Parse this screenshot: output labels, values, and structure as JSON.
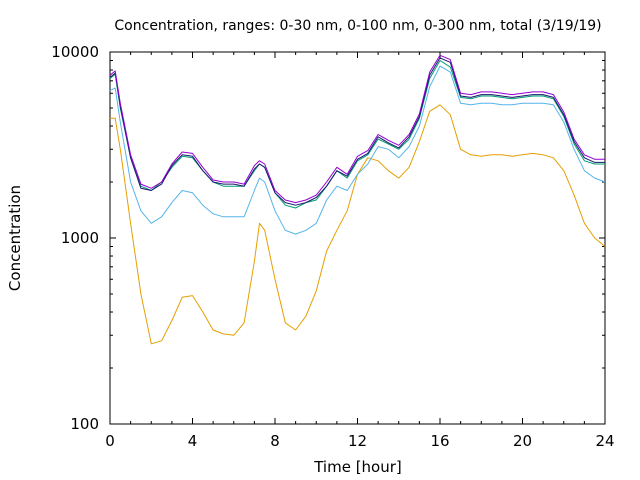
{
  "chart_data": {
    "type": "line",
    "title": "Concentration, ranges: 0-30 nm, 0-100 nm, 0-300 nm, total (3/19/19)",
    "xlabel": "Time [hour]",
    "ylabel": "Concentration",
    "xlim": [
      0,
      24
    ],
    "ylim": [
      100,
      10000
    ],
    "yscale": "log",
    "xticks": [
      "0",
      "4",
      "8",
      "12",
      "16",
      "20",
      "24"
    ],
    "yticks": [
      "100",
      "1000",
      "10000"
    ],
    "grid": false,
    "legend": "none",
    "x": [
      0,
      0.25,
      0.5,
      1,
      1.5,
      2,
      2.5,
      3,
      3.5,
      4,
      4.5,
      5,
      5.5,
      6,
      6.5,
      7,
      7.25,
      7.5,
      8,
      8.5,
      9,
      9.5,
      10,
      10.5,
      11,
      11.5,
      12,
      12.5,
      13,
      13.5,
      14,
      14.5,
      15,
      15.5,
      16,
      16.5,
      17,
      17.5,
      18,
      18.5,
      19,
      19.5,
      20,
      20.5,
      21,
      21.5,
      22,
      22.5,
      23,
      23.5,
      24
    ],
    "series": [
      {
        "color": "#e59f00",
        "values": [
          4400,
          4400,
          3000,
          1200,
          500,
          270,
          280,
          360,
          480,
          490,
          400,
          320,
          305,
          300,
          350,
          750,
          1200,
          1100,
          600,
          350,
          320,
          380,
          520,
          850,
          1100,
          1400,
          2200,
          2700,
          2600,
          2300,
          2100,
          2400,
          3300,
          4800,
          5200,
          4600,
          3000,
          2800,
          2750,
          2800,
          2800,
          2750,
          2800,
          2850,
          2800,
          2700,
          2300,
          1700,
          1200,
          1000,
          900
        ]
      },
      {
        "color": "#56b4e9",
        "values": [
          6200,
          6400,
          4200,
          2000,
          1400,
          1200,
          1300,
          1550,
          1800,
          1750,
          1500,
          1350,
          1300,
          1300,
          1300,
          1800,
          2100,
          2000,
          1400,
          1100,
          1050,
          1100,
          1200,
          1600,
          1900,
          1800,
          2200,
          2500,
          3100,
          3000,
          2700,
          3100,
          4000,
          6500,
          8400,
          7800,
          5300,
          5200,
          5300,
          5300,
          5200,
          5200,
          5300,
          5300,
          5300,
          5200,
          4200,
          3000,
          2300,
          2100,
          2000
        ]
      },
      {
        "color": "#009e73",
        "values": [
          7200,
          7600,
          5000,
          2700,
          1900,
          1800,
          2000,
          2400,
          2750,
          2700,
          2300,
          2000,
          1900,
          1900,
          1900,
          2300,
          2500,
          2400,
          1750,
          1500,
          1450,
          1550,
          1600,
          1900,
          2300,
          2100,
          2600,
          2800,
          3400,
          3200,
          3000,
          3400,
          4400,
          7200,
          9000,
          8300,
          5700,
          5600,
          5800,
          5800,
          5700,
          5600,
          5700,
          5800,
          5800,
          5600,
          4500,
          3200,
          2600,
          2500,
          2500
        ]
      },
      {
        "color": "#191970",
        "values": [
          7300,
          7700,
          5100,
          2700,
          1850,
          1800,
          1950,
          2450,
          2800,
          2750,
          2300,
          2000,
          1950,
          1950,
          1900,
          2350,
          2500,
          2400,
          1750,
          1550,
          1500,
          1550,
          1650,
          1900,
          2300,
          2150,
          2650,
          2850,
          3500,
          3250,
          3050,
          3500,
          4500,
          7500,
          9300,
          8800,
          5800,
          5700,
          5900,
          5900,
          5800,
          5700,
          5800,
          5900,
          5900,
          5700,
          4600,
          3300,
          2700,
          2550,
          2550
        ]
      },
      {
        "color": "#9400d3",
        "values": [
          7500,
          7900,
          5300,
          2800,
          1950,
          1850,
          2000,
          2500,
          2900,
          2850,
          2400,
          2050,
          2000,
          2000,
          1950,
          2450,
          2600,
          2500,
          1800,
          1600,
          1550,
          1600,
          1700,
          2000,
          2400,
          2200,
          2750,
          2950,
          3600,
          3350,
          3150,
          3600,
          4650,
          7800,
          9600,
          9100,
          6000,
          5900,
          6100,
          6100,
          6000,
          5900,
          6000,
          6100,
          6100,
          5900,
          4750,
          3400,
          2800,
          2650,
          2650
        ]
      }
    ]
  }
}
